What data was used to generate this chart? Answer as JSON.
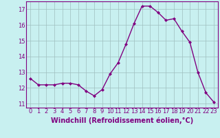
{
  "x": [
    0,
    1,
    2,
    3,
    4,
    5,
    6,
    7,
    8,
    9,
    10,
    11,
    12,
    13,
    14,
    15,
    16,
    17,
    18,
    19,
    20,
    21,
    22,
    23
  ],
  "y": [
    12.6,
    12.2,
    12.2,
    12.2,
    12.3,
    12.3,
    12.2,
    11.8,
    11.5,
    11.9,
    12.9,
    13.6,
    14.8,
    16.1,
    17.2,
    17.2,
    16.8,
    16.3,
    16.4,
    15.6,
    14.9,
    13.0,
    11.7,
    11.1
  ],
  "line_color": "#800080",
  "marker": "D",
  "marker_size": 2,
  "bg_color": "#c8f0f0",
  "grid_color": "#9fbfbf",
  "xlabel": "Windchill (Refroidissement éolien,°C)",
  "xlabel_color": "#800080",
  "xlabel_fontsize": 7,
  "ytick_labels": [
    "11",
    "12",
    "13",
    "14",
    "15",
    "16",
    "17"
  ],
  "ytick_values": [
    11,
    12,
    13,
    14,
    15,
    16,
    17
  ],
  "xtick_labels": [
    "0",
    "1",
    "2",
    "3",
    "4",
    "5",
    "6",
    "7",
    "8",
    "9",
    "10",
    "11",
    "12",
    "13",
    "14",
    "15",
    "16",
    "17",
    "18",
    "19",
    "20",
    "21",
    "22",
    "23"
  ],
  "ylim": [
    10.75,
    17.5
  ],
  "xlim": [
    -0.5,
    23.5
  ],
  "tick_color": "#800080",
  "tick_fontsize": 6,
  "spine_color": "#800080"
}
